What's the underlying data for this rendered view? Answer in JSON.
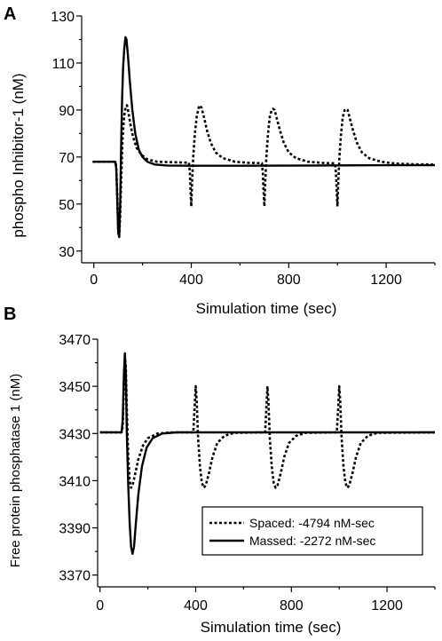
{
  "chart_data": [
    {
      "panel": "A",
      "type": "line",
      "xlabel": "Simulation time (sec)",
      "ylabel": "phospho Inhibitor-1 (nM)",
      "xlim": [
        -50,
        1400
      ],
      "ylim": [
        25,
        130
      ],
      "xticks": [
        0,
        400,
        800,
        1200
      ],
      "yticks": [
        30,
        50,
        70,
        90,
        110,
        130
      ],
      "series": [
        {
          "key": "spaced",
          "style": "dotted",
          "color": "#000000",
          "points": [
            [
              -5,
              68
            ],
            [
              88,
              68
            ],
            [
              92,
              66
            ],
            [
              96,
              54
            ],
            [
              100,
              38
            ],
            [
              104,
              36
            ],
            [
              108,
              45
            ],
            [
              112,
              60
            ],
            [
              118,
              78
            ],
            [
              124,
              87
            ],
            [
              130,
              91
            ],
            [
              136,
              92
            ],
            [
              142,
              89
            ],
            [
              150,
              84
            ],
            [
              160,
              79
            ],
            [
              175,
              74
            ],
            [
              195,
              71
            ],
            [
              220,
              69
            ],
            [
              260,
              68
            ],
            [
              320,
              67.8
            ],
            [
              390,
              67.6
            ],
            [
              394,
              64
            ],
            [
              397,
              56
            ],
            [
              400,
              49
            ],
            [
              403,
              58
            ],
            [
              408,
              70
            ],
            [
              415,
              80
            ],
            [
              422,
              87
            ],
            [
              430,
              91
            ],
            [
              436,
              92
            ],
            [
              442,
              91
            ],
            [
              452,
              87
            ],
            [
              465,
              81
            ],
            [
              480,
              76
            ],
            [
              500,
              72
            ],
            [
              530,
              69.5
            ],
            [
              580,
              68
            ],
            [
              640,
              67.5
            ],
            [
              690,
              67.4
            ],
            [
              694,
              63
            ],
            [
              697,
              55
            ],
            [
              700,
              49
            ],
            [
              703,
              58
            ],
            [
              708,
              70
            ],
            [
              715,
              80
            ],
            [
              722,
              87
            ],
            [
              730,
              90
            ],
            [
              736,
              90.5
            ],
            [
              742,
              90
            ],
            [
              752,
              86
            ],
            [
              765,
              81
            ],
            [
              780,
              76
            ],
            [
              800,
              72
            ],
            [
              830,
              69.5
            ],
            [
              880,
              68
            ],
            [
              940,
              67.5
            ],
            [
              990,
              67.3
            ],
            [
              994,
              63
            ],
            [
              997,
              55
            ],
            [
              1000,
              49
            ],
            [
              1003,
              58
            ],
            [
              1008,
              70
            ],
            [
              1015,
              80
            ],
            [
              1022,
              87
            ],
            [
              1030,
              90
            ],
            [
              1036,
              90.5
            ],
            [
              1042,
              90
            ],
            [
              1052,
              86
            ],
            [
              1065,
              81
            ],
            [
              1080,
              76
            ],
            [
              1100,
              72
            ],
            [
              1130,
              69.5
            ],
            [
              1180,
              68
            ],
            [
              1240,
              67.2
            ],
            [
              1320,
              66.9
            ],
            [
              1400,
              66.8
            ]
          ]
        },
        {
          "key": "massed",
          "style": "solid",
          "color": "#000000",
          "points": [
            [
              -5,
              68
            ],
            [
              88,
              68
            ],
            [
              92,
              65
            ],
            [
              96,
              52
            ],
            [
              100,
              38
            ],
            [
              104,
              36
            ],
            [
              108,
              50
            ],
            [
              112,
              75
            ],
            [
              116,
              95
            ],
            [
              120,
              108
            ],
            [
              125,
              116
            ],
            [
              130,
              121
            ],
            [
              134,
              120
            ],
            [
              140,
              113
            ],
            [
              148,
              102
            ],
            [
              158,
              90
            ],
            [
              170,
              80
            ],
            [
              185,
              73
            ],
            [
              200,
              70
            ],
            [
              220,
              68
            ],
            [
              250,
              66.8
            ],
            [
              300,
              66.4
            ],
            [
              400,
              66.3
            ],
            [
              600,
              66.3
            ],
            [
              900,
              66.4
            ],
            [
              1200,
              66.5
            ],
            [
              1400,
              66.5
            ]
          ]
        }
      ]
    },
    {
      "panel": "B",
      "type": "line",
      "xlabel": "Simulation time (sec)",
      "ylabel": "Free protein phosphatase 1 (nM)",
      "xlim": [
        -10,
        1400
      ],
      "ylim": [
        3365,
        3470
      ],
      "xticks": [
        0,
        400,
        800,
        1200
      ],
      "yticks": [
        3370,
        3390,
        3410,
        3430,
        3450,
        3470
      ],
      "legend": {
        "position": "lower-right",
        "entries": [
          {
            "series": "spaced",
            "label": "Spaced: -4794 nM-sec"
          },
          {
            "series": "massed",
            "label": "Massed: -2272 nM-sec"
          }
        ]
      },
      "series": [
        {
          "key": "spaced",
          "style": "dotted",
          "color": "#000000",
          "points": [
            [
              0,
              3430.5
            ],
            [
              90,
              3430.5
            ],
            [
              95,
              3433
            ],
            [
              100,
              3450
            ],
            [
              104,
              3463
            ],
            [
              108,
              3458
            ],
            [
              112,
              3440
            ],
            [
              118,
              3420
            ],
            [
              124,
              3410
            ],
            [
              130,
              3407
            ],
            [
              136,
              3408
            ],
            [
              145,
              3412
            ],
            [
              160,
              3419
            ],
            [
              180,
              3425
            ],
            [
              200,
              3428
            ],
            [
              240,
              3430
            ],
            [
              300,
              3430.5
            ],
            [
              390,
              3430.5
            ],
            [
              395,
              3440
            ],
            [
              400,
              3450
            ],
            [
              404,
              3444
            ],
            [
              410,
              3428
            ],
            [
              418,
              3416
            ],
            [
              426,
              3409
            ],
            [
              434,
              3407
            ],
            [
              442,
              3408
            ],
            [
              455,
              3413
            ],
            [
              470,
              3420
            ],
            [
              490,
              3426
            ],
            [
              520,
              3429
            ],
            [
              560,
              3430.3
            ],
            [
              690,
              3430.5
            ],
            [
              695,
              3440
            ],
            [
              700,
              3450
            ],
            [
              704,
              3444
            ],
            [
              710,
              3428
            ],
            [
              718,
              3416
            ],
            [
              726,
              3409
            ],
            [
              734,
              3407
            ],
            [
              742,
              3408
            ],
            [
              755,
              3413
            ],
            [
              770,
              3420
            ],
            [
              790,
              3426
            ],
            [
              820,
              3429
            ],
            [
              860,
              3430.3
            ],
            [
              990,
              3430.5
            ],
            [
              995,
              3440
            ],
            [
              1000,
              3450
            ],
            [
              1004,
              3444
            ],
            [
              1010,
              3428
            ],
            [
              1018,
              3416
            ],
            [
              1026,
              3409
            ],
            [
              1034,
              3407
            ],
            [
              1042,
              3408
            ],
            [
              1055,
              3413
            ],
            [
              1070,
              3420
            ],
            [
              1090,
              3426
            ],
            [
              1120,
              3429
            ],
            [
              1160,
              3430.3
            ],
            [
              1400,
              3430.5
            ]
          ]
        },
        {
          "key": "massed",
          "style": "solid",
          "color": "#000000",
          "points": [
            [
              0,
              3430.5
            ],
            [
              90,
              3430.5
            ],
            [
              95,
              3436
            ],
            [
              100,
              3455
            ],
            [
              104,
              3464
            ],
            [
              108,
              3455
            ],
            [
              112,
              3430
            ],
            [
              118,
              3408
            ],
            [
              124,
              3392
            ],
            [
              130,
              3382
            ],
            [
              136,
              3379
            ],
            [
              142,
              3382
            ],
            [
              150,
              3392
            ],
            [
              160,
              3404
            ],
            [
              175,
              3416
            ],
            [
              195,
              3424
            ],
            [
              220,
              3428
            ],
            [
              260,
              3430
            ],
            [
              320,
              3430.5
            ],
            [
              1400,
              3430.5
            ]
          ]
        }
      ]
    }
  ]
}
